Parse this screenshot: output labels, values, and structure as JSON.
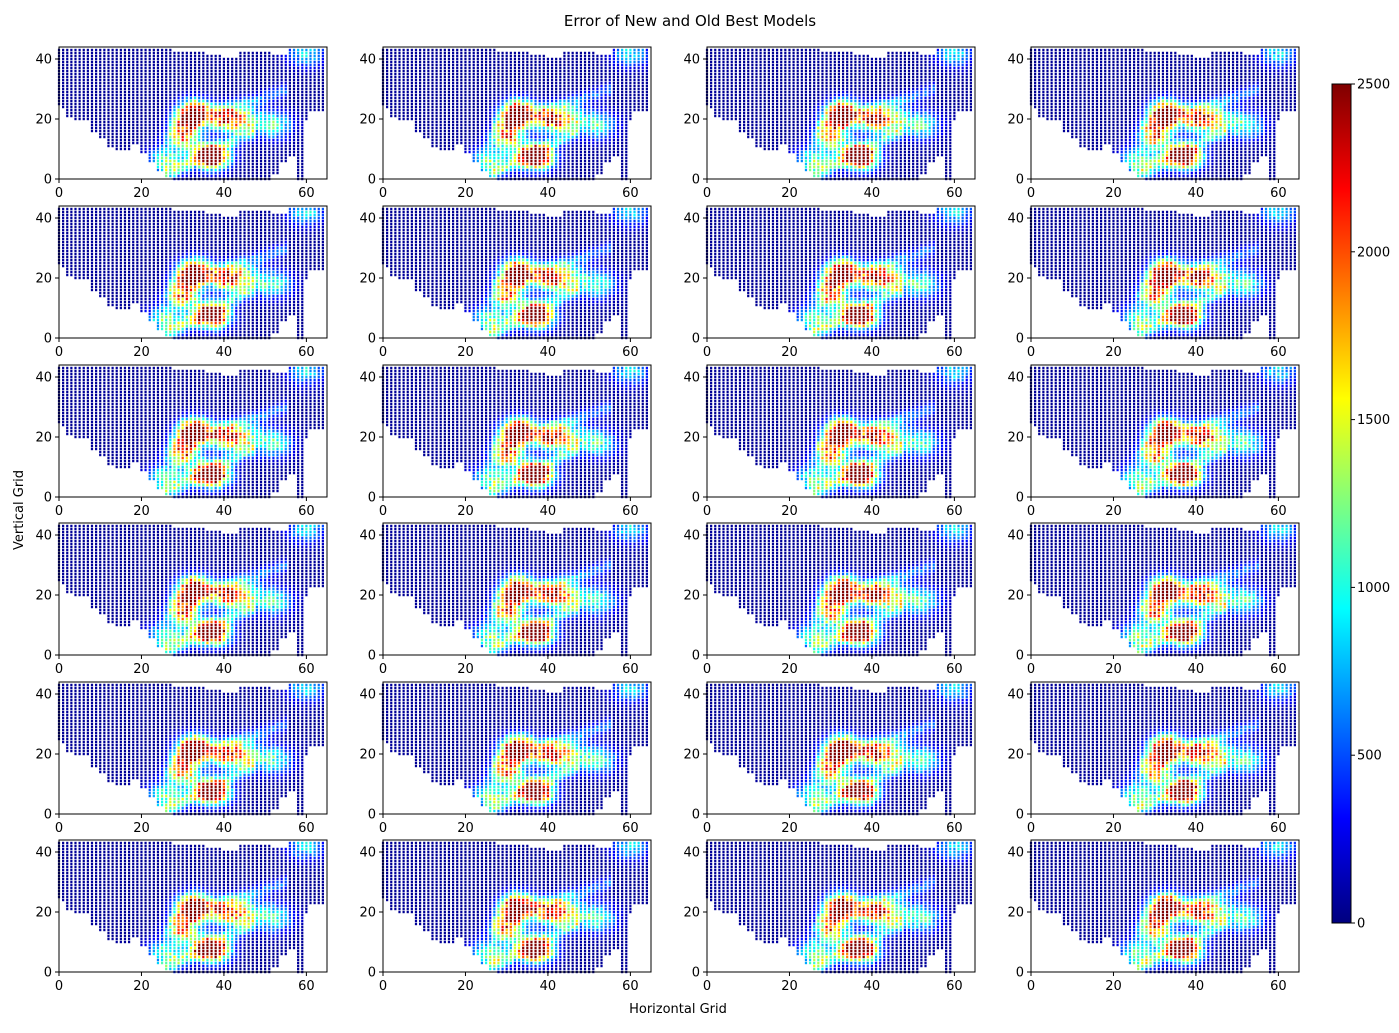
{
  "figure": {
    "title": "Error of New and Old Best Models",
    "xlabel": "Horizontal Grid",
    "ylabel": "Vertical Grid"
  },
  "chart_data": {
    "type": "scatter",
    "layout": {
      "rows": 6,
      "cols": 4,
      "panel_count": 24
    },
    "title": "Error of New and Old Best Models",
    "xlabel": "Horizontal Grid",
    "ylabel": "Vertical Grid",
    "xlim": [
      0,
      65
    ],
    "ylim": [
      0,
      44
    ],
    "xticks": [
      0,
      20,
      40,
      60
    ],
    "yticks": [
      0,
      20,
      40
    ],
    "grid": false,
    "marker": "small dot",
    "colormap": "jet",
    "colorbar": {
      "min": 0,
      "max": 2500,
      "ticks": [
        0,
        500,
        1000,
        1500,
        2000,
        2500
      ],
      "placement": "right"
    },
    "region": {
      "x_range": [
        0,
        64
      ],
      "y_range": [
        0,
        43
      ],
      "description_points": "grid points on an irregular land-shaped domain, one point per integer cell"
    },
    "hotspots": [
      {
        "x": 33,
        "y": 23,
        "value": 2000
      },
      {
        "x": 32,
        "y": 20,
        "value": 2100
      },
      {
        "x": 30,
        "y": 14,
        "value": 1900
      },
      {
        "x": 36,
        "y": 8,
        "value": 2100
      },
      {
        "x": 38,
        "y": 7,
        "value": 1900
      },
      {
        "x": 40,
        "y": 20,
        "value": 1700
      },
      {
        "x": 44,
        "y": 20,
        "value": 1400
      },
      {
        "x": 26,
        "y": 6,
        "value": 1200
      },
      {
        "x": 52,
        "y": 18,
        "value": 1100
      },
      {
        "x": 60,
        "y": 42,
        "value": 900
      }
    ],
    "background_value": 60
  },
  "colors": {
    "colormap_stops": [
      "#00007f",
      "#0000ff",
      "#007fff",
      "#00ffff",
      "#7fff7f",
      "#ffff00",
      "#ff7f00",
      "#ff0000",
      "#7f0000"
    ]
  }
}
